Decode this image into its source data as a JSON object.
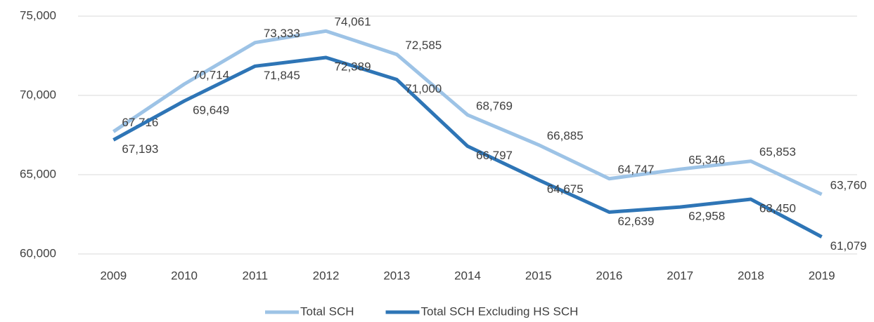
{
  "chart_data": {
    "type": "line",
    "categories": [
      "2009",
      "2010",
      "2011",
      "2012",
      "2013",
      "2014",
      "2015",
      "2016",
      "2017",
      "2018",
      "2019"
    ],
    "series": [
      {
        "name": "Total SCH",
        "color": "#9dc3e6",
        "values": [
          67716,
          70714,
          73333,
          74061,
          72585,
          68769,
          66885,
          64747,
          65346,
          65853,
          63760
        ],
        "value_labels": [
          "67,716",
          "70,714",
          "73,333",
          "74,061",
          "72,585",
          "68,769",
          "66,885",
          "64,747",
          "65,346",
          "65,853",
          "63,760"
        ]
      },
      {
        "name": "Total SCH Excluding HS SCH",
        "color": "#2e75b6",
        "values": [
          67193,
          69649,
          71845,
          72389,
          71000,
          66797,
          64675,
          62639,
          62958,
          63450,
          61079
        ],
        "value_labels": [
          "67,193",
          "69,649",
          "71,845",
          "72,389",
          "71,000",
          "66,797",
          "64,675",
          "62,639",
          "62,958",
          "63,450",
          "61,079"
        ]
      }
    ],
    "ylim": [
      60000,
      75000
    ],
    "yticks": [
      {
        "value": 60000,
        "label": "60,000"
      },
      {
        "value": 65000,
        "label": "65,000"
      },
      {
        "value": 70000,
        "label": "70,000"
      },
      {
        "value": 75000,
        "label": "75,000"
      }
    ],
    "grid": true,
    "legend": "bottom"
  }
}
